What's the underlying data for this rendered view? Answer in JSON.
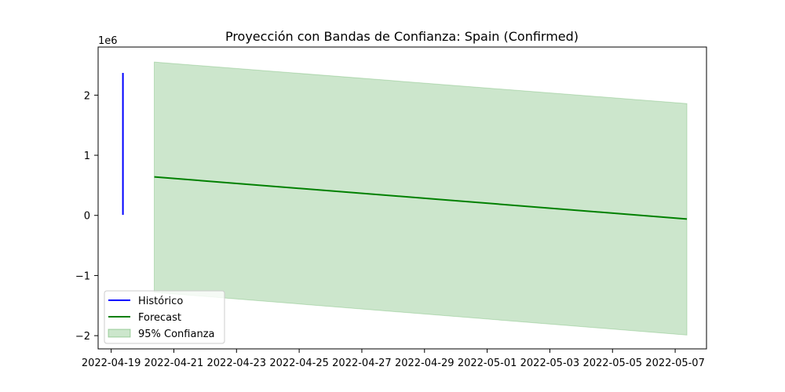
{
  "chart_data": {
    "type": "line",
    "title": "Proyección con Bandas de Confianza: Spain (Confirmed)",
    "xlabel": "",
    "ylabel": "",
    "y_offset_label": "1e6",
    "x_axis_type": "date",
    "xlim": [
      "2022-04-18T14:00",
      "2022-05-08T00:00"
    ],
    "ylim": [
      -2.22,
      2.8
    ],
    "y_unit_multiplier": 1000000,
    "x_ticks": [
      "2022-04-19",
      "2022-04-21",
      "2022-04-23",
      "2022-04-25",
      "2022-04-27",
      "2022-04-29",
      "2022-05-01",
      "2022-05-03",
      "2022-05-05",
      "2022-05-07"
    ],
    "y_ticks": [
      -2,
      -1,
      0,
      1,
      2
    ],
    "y_tick_labels": [
      "−2",
      "−1",
      "0",
      "1",
      "2"
    ],
    "grid": false,
    "legend_position": "lower-left",
    "series": [
      {
        "name": "Histórico",
        "kind": "line",
        "color": "#0000ff",
        "points": [
          [
            "2022-04-19T09:00",
            0.01
          ],
          [
            "2022-04-19T09:00",
            1.2
          ],
          [
            "2022-04-19T09:00",
            2.37
          ]
        ]
      },
      {
        "name": "Forecast",
        "kind": "line",
        "color": "#008000",
        "points": [
          [
            "2022-04-20T09:00",
            0.64
          ],
          [
            "2022-05-07T09:00",
            -0.06
          ]
        ]
      },
      {
        "name": "95% Confianza",
        "kind": "band",
        "color": "#008000",
        "fill_opacity": 0.2,
        "upper": [
          [
            "2022-04-20T09:00",
            2.55
          ],
          [
            "2022-05-07T09:00",
            1.86
          ]
        ],
        "lower": [
          [
            "2022-04-20T09:00",
            -1.28
          ],
          [
            "2022-05-07T09:00",
            -1.99
          ]
        ]
      }
    ]
  }
}
